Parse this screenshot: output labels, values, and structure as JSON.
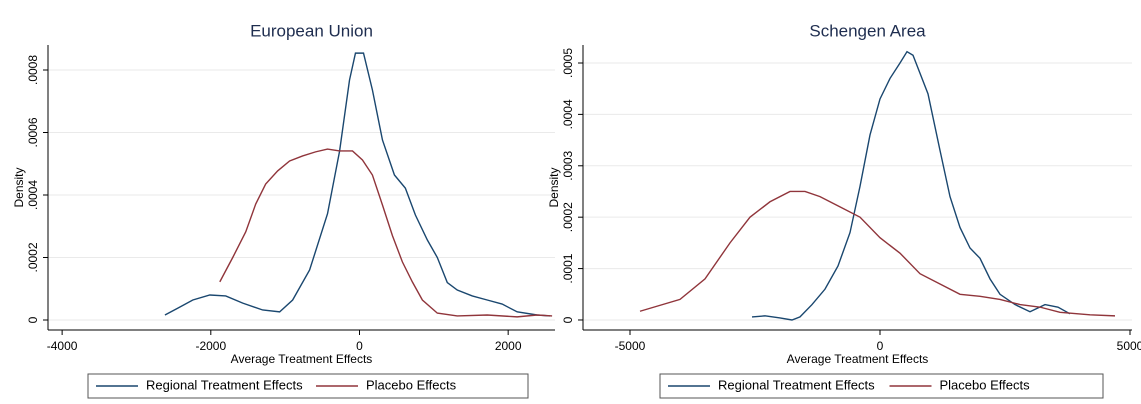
{
  "chart_data": [
    {
      "type": "line",
      "title": "European Union",
      "x_label": "Average Treatment Effects",
      "y_label": "Density",
      "xlim": [
        -4190,
        2630
      ],
      "xticks": [
        -4000,
        -2000,
        0,
        2000
      ],
      "ylim": [
        -3.2e-05,
        0.00088
      ],
      "yticks": [
        {
          "value": 0,
          "label": "0"
        },
        {
          "value": 0.0002,
          "label": ".0002"
        },
        {
          "value": 0.0004,
          "label": ".0004"
        },
        {
          "value": 0.0006,
          "label": ".0006"
        },
        {
          "value": 0.0008,
          "label": ".0008"
        }
      ],
      "grid": true,
      "legend": "bottom",
      "series": [
        {
          "name": "Regional Treatment Effects",
          "color": "#1a476f",
          "x": [
            -2617,
            -2443,
            -2242,
            -2013,
            -1799,
            -1570,
            -1302,
            -1074,
            -899,
            -671,
            -430,
            -268,
            -134,
            -54,
            54,
            174,
            309,
            470,
            617,
            752,
            913,
            1047,
            1181,
            1315,
            1517,
            1718,
            1919,
            2121,
            2389,
            2564
          ],
          "values": [
            1.6e-05,
            3.8e-05,
            6.4e-05,
            8e-05,
            7.7e-05,
            5.4e-05,
            3.2e-05,
            2.6e-05,
            6.4e-05,
            0.00016,
            0.00034,
            0.00054,
            0.000768,
            0.000854,
            0.000854,
            0.000736,
            0.000576,
            0.000464,
            0.000422,
            0.000336,
            0.000256,
            0.0002,
            0.00012,
            9.6e-05,
            7.7e-05,
            6.4e-05,
            5.1e-05,
            2.6e-05,
            1.6e-05,
            1.3e-05
          ]
        },
        {
          "name": "Placebo Effects",
          "color": "#90353b",
          "x": [
            -1879,
            -1705,
            -1530,
            -1396,
            -1262,
            -1101,
            -940,
            -765,
            -591,
            -430,
            -268,
            -94,
            40,
            174,
            309,
            443,
            577,
            711,
            846,
            1047,
            1315,
            1718,
            2121,
            2389,
            2591
          ],
          "values": [
            0.000122,
            0.0002,
            0.000282,
            0.000371,
            0.000435,
            0.000477,
            0.000509,
            0.000525,
            0.000538,
            0.000547,
            0.000541,
            0.000541,
            0.000512,
            0.000464,
            0.000368,
            0.00027,
            0.000186,
            0.000122,
            6.4e-05,
            2.2e-05,
            1.3e-05,
            1.6e-05,
            1e-05,
            1.6e-05,
            1.3e-05
          ]
        }
      ]
    },
    {
      "type": "line",
      "title": "Schengen Area",
      "x_label": "Average Treatment Effects",
      "y_label": "Density",
      "xlim": [
        -5940,
        5040
      ],
      "xticks": [
        -5000,
        0,
        5000
      ],
      "ylim": [
        -1.95e-05,
        0.000535
      ],
      "yticks": [
        {
          "value": 0,
          "label": "0"
        },
        {
          "value": 0.0001,
          "label": ".0001"
        },
        {
          "value": 0.0002,
          "label": ".0002"
        },
        {
          "value": 0.0003,
          "label": ".0003"
        },
        {
          "value": 0.0004,
          "label": ".0004"
        },
        {
          "value": 0.0005,
          "label": ".0005"
        }
      ],
      "grid": true,
      "legend": "bottom",
      "series": [
        {
          "name": "Regional Treatment Effects",
          "color": "#1a476f",
          "x": [
            -2560,
            -2300,
            -2000,
            -1760,
            -1600,
            -1360,
            -1100,
            -840,
            -600,
            -400,
            -200,
            0,
            200,
            400,
            540,
            660,
            800,
            960,
            1200,
            1400,
            1600,
            1800,
            2000,
            2200,
            2400,
            2700,
            3000,
            3300,
            3560,
            3800
          ],
          "values": [
            6e-06,
            8e-06,
            4e-06,
            0,
            6e-06,
            3e-05,
            6e-05,
            0.000105,
            0.00017,
            0.00026,
            0.00036,
            0.00043,
            0.00047,
            0.0005,
            0.000522,
            0.000515,
            0.00048,
            0.00044,
            0.00033,
            0.00024,
            0.00018,
            0.00014,
            0.00012,
            8e-05,
            5e-05,
            3e-05,
            1.6e-05,
            3e-05,
            2.5e-05,
            1.2e-05
          ]
        },
        {
          "name": "Placebo Effects",
          "color": "#90353b",
          "x": [
            -4800,
            -4000,
            -3500,
            -3000,
            -2600,
            -2200,
            -1800,
            -1500,
            -1200,
            -800,
            -400,
            0,
            400,
            800,
            1200,
            1600,
            2000,
            2400,
            2800,
            3200,
            3600,
            4200,
            4700
          ],
          "values": [
            1.7e-05,
            4e-05,
            8e-05,
            0.00015,
            0.0002,
            0.00023,
            0.00025,
            0.00025,
            0.00024,
            0.00022,
            0.0002,
            0.00016,
            0.00013,
            9e-05,
            7e-05,
            5e-05,
            4.6e-05,
            4e-05,
            3e-05,
            2.5e-05,
            1.5e-05,
            1e-05,
            8e-06
          ]
        }
      ]
    }
  ]
}
